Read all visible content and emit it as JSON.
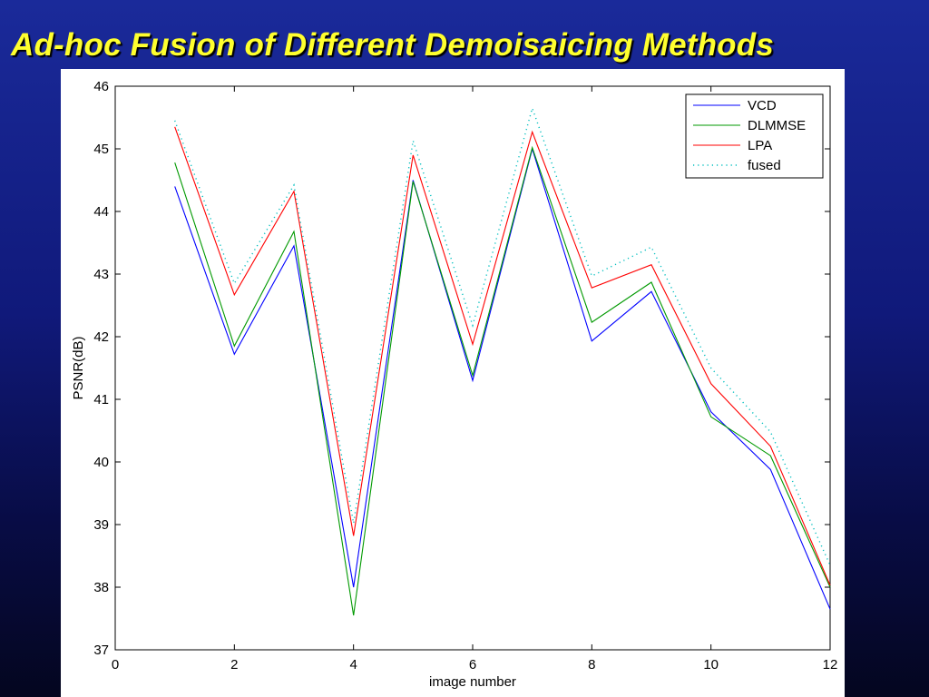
{
  "slide": {
    "title": "Ad-hoc Fusion of Different Demoisaicing Methods"
  },
  "colors": {
    "title": "#ffff2e",
    "background_top": "#1a2a9a",
    "background_bottom": "#04061f",
    "VCD": "#0000ff",
    "DLMMSE": "#009900",
    "LPA": "#ff0000",
    "fused": "#00bfbf"
  },
  "chart_data": {
    "type": "line",
    "title": "",
    "xlabel": "image number",
    "ylabel": "PSNR(dB)",
    "xlim": [
      0,
      12
    ],
    "ylim": [
      37,
      46
    ],
    "xticks": [
      0,
      2,
      4,
      6,
      8,
      10,
      12
    ],
    "yticks": [
      37,
      38,
      39,
      40,
      41,
      42,
      43,
      44,
      45,
      46
    ],
    "grid": false,
    "legend_position": "top-right",
    "x": [
      1,
      2,
      3,
      4,
      5,
      6,
      7,
      8,
      9,
      10,
      11,
      12
    ],
    "series": [
      {
        "name": "VCD",
        "color": "#0000ff",
        "style": "solid",
        "values": [
          44.4,
          41.72,
          43.45,
          38.0,
          44.5,
          41.3,
          45.0,
          41.93,
          42.72,
          40.8,
          39.88,
          37.65
        ]
      },
      {
        "name": "DLMMSE",
        "color": "#009900",
        "style": "solid",
        "values": [
          44.78,
          41.85,
          43.68,
          37.55,
          44.48,
          41.38,
          45.02,
          42.23,
          42.87,
          40.72,
          40.1,
          38.0
        ]
      },
      {
        "name": "LPA",
        "color": "#ff0000",
        "style": "solid",
        "values": [
          45.35,
          42.67,
          44.32,
          38.82,
          44.9,
          41.88,
          45.27,
          42.78,
          43.15,
          41.25,
          40.25,
          38.03
        ]
      },
      {
        "name": "fused",
        "color": "#00bfbf",
        "style": "dotted",
        "values": [
          45.45,
          42.85,
          44.42,
          39.02,
          45.13,
          42.18,
          45.65,
          42.97,
          43.43,
          41.5,
          40.48,
          38.35
        ]
      }
    ]
  }
}
